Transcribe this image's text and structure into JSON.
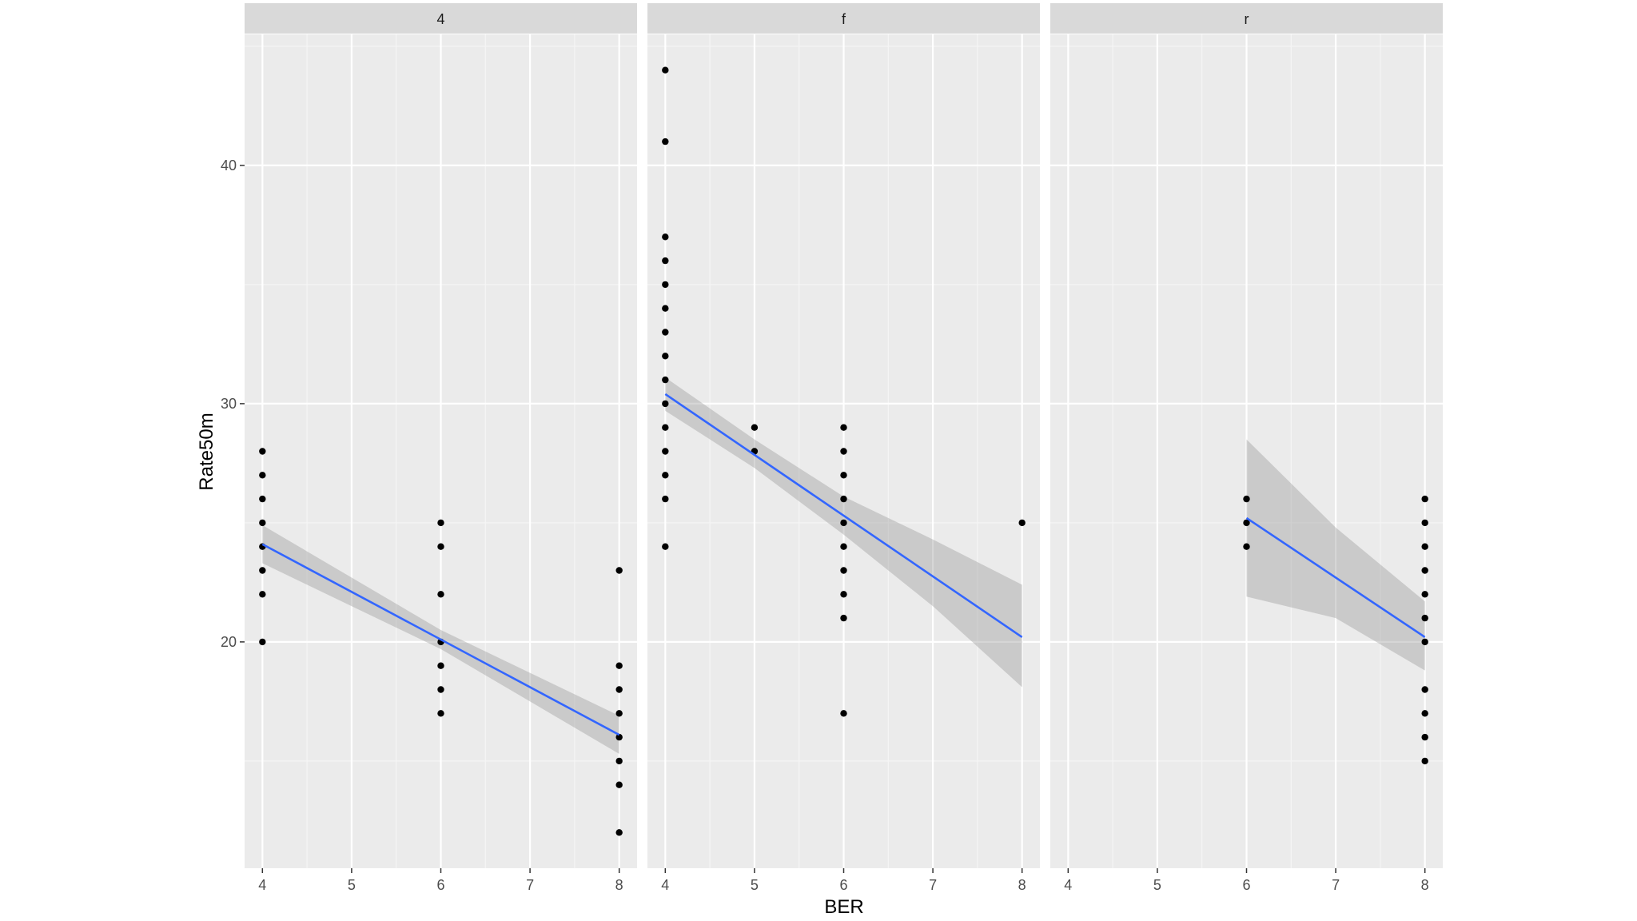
{
  "chart_data": {
    "type": "scatter",
    "xlabel": "BER",
    "ylabel": "Rate50m",
    "xlim": [
      3.8,
      8.2
    ],
    "ylim": [
      10.5,
      45.5
    ],
    "x_ticks": [
      4,
      5,
      6,
      7,
      8
    ],
    "y_ticks": [
      20,
      30,
      40
    ],
    "grid": true,
    "colors": {
      "panel_bg": "#ebebeb",
      "strip_bg": "#d9d9d9",
      "grid_major": "#ffffff",
      "point": "#000000",
      "fit_line": "#3366ff",
      "ribbon": "#999999"
    },
    "facets": [
      {
        "label": "4",
        "points": [
          [
            4,
            28
          ],
          [
            4,
            27
          ],
          [
            4,
            26
          ],
          [
            4,
            25
          ],
          [
            4,
            24
          ],
          [
            4,
            23
          ],
          [
            4,
            22
          ],
          [
            4,
            20
          ],
          [
            6,
            25
          ],
          [
            6,
            24
          ],
          [
            6,
            22
          ],
          [
            6,
            20
          ],
          [
            6,
            19
          ],
          [
            6,
            18
          ],
          [
            6,
            17
          ],
          [
            8,
            23
          ],
          [
            8,
            19
          ],
          [
            8,
            18
          ],
          [
            8,
            17
          ],
          [
            8,
            16
          ],
          [
            8,
            15
          ],
          [
            8,
            14
          ],
          [
            8,
            12
          ]
        ],
        "fit": [
          [
            4,
            24.1
          ],
          [
            8,
            16.1
          ]
        ],
        "ci_upper": [
          [
            4,
            24.9
          ],
          [
            6,
            20.5
          ],
          [
            8,
            16.9
          ]
        ],
        "ci_lower": [
          [
            4,
            23.3
          ],
          [
            6,
            19.7
          ],
          [
            8,
            15.3
          ]
        ]
      },
      {
        "label": "f",
        "points": [
          [
            4,
            44
          ],
          [
            4,
            41
          ],
          [
            4,
            37
          ],
          [
            4,
            36
          ],
          [
            4,
            35
          ],
          [
            4,
            34
          ],
          [
            4,
            33
          ],
          [
            4,
            32
          ],
          [
            4,
            31
          ],
          [
            4,
            30
          ],
          [
            4,
            29
          ],
          [
            4,
            28
          ],
          [
            4,
            27
          ],
          [
            4,
            26
          ],
          [
            4,
            24
          ],
          [
            5,
            29
          ],
          [
            5,
            28
          ],
          [
            6,
            29
          ],
          [
            6,
            28
          ],
          [
            6,
            27
          ],
          [
            6,
            26
          ],
          [
            6,
            25
          ],
          [
            6,
            24
          ],
          [
            6,
            23
          ],
          [
            6,
            22
          ],
          [
            6,
            21
          ],
          [
            6,
            17
          ],
          [
            8,
            25
          ]
        ],
        "fit": [
          [
            4,
            30.4
          ],
          [
            8,
            20.2
          ]
        ],
        "ci_upper": [
          [
            4,
            31.1
          ],
          [
            5,
            28.5
          ],
          [
            6,
            26.1
          ],
          [
            7,
            24.3
          ],
          [
            8,
            22.4
          ]
        ],
        "ci_lower": [
          [
            4,
            29.7
          ],
          [
            5,
            27.3
          ],
          [
            6,
            24.5
          ],
          [
            7,
            21.5
          ],
          [
            8,
            18.1
          ]
        ]
      },
      {
        "label": "r",
        "points": [
          [
            6,
            26
          ],
          [
            6,
            25
          ],
          [
            6,
            24
          ],
          [
            8,
            26
          ],
          [
            8,
            25
          ],
          [
            8,
            24
          ],
          [
            8,
            23
          ],
          [
            8,
            22
          ],
          [
            8,
            21
          ],
          [
            8,
            20
          ],
          [
            8,
            18
          ],
          [
            8,
            17
          ],
          [
            8,
            16
          ],
          [
            8,
            15
          ]
        ],
        "fit": [
          [
            6,
            25.2
          ],
          [
            8,
            20.2
          ]
        ],
        "ci_upper": [
          [
            6,
            28.5
          ],
          [
            7,
            24.8
          ],
          [
            8,
            21.7
          ]
        ],
        "ci_lower": [
          [
            6,
            21.9
          ],
          [
            7,
            21.0
          ],
          [
            8,
            18.8
          ]
        ]
      }
    ]
  }
}
